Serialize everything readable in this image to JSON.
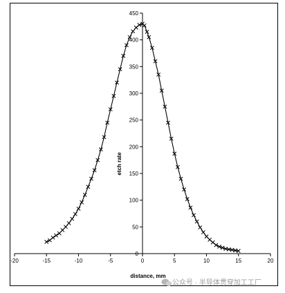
{
  "chart_data": {
    "type": "scatter",
    "xlabel": "distance, mm",
    "ylabel": "etch rate",
    "xlim": [
      -20,
      20
    ],
    "ylim": [
      0,
      450
    ],
    "x_ticks": [
      -20,
      -15,
      -10,
      -5,
      0,
      5,
      10,
      15,
      20
    ],
    "y_ticks": [
      0,
      50,
      100,
      150,
      200,
      250,
      300,
      350,
      400,
      450
    ],
    "grid": false,
    "legend": "none",
    "series": [
      {
        "marker": "x",
        "fit_line": true,
        "points": [
          [
            -15,
            22
          ],
          [
            -14.5,
            25
          ],
          [
            -14,
            30
          ],
          [
            -13.5,
            34
          ],
          [
            -13,
            38
          ],
          [
            -12.5,
            44
          ],
          [
            -12,
            50
          ],
          [
            -11.5,
            57
          ],
          [
            -11,
            65
          ],
          [
            -10.5,
            74
          ],
          [
            -10,
            84
          ],
          [
            -9.5,
            96
          ],
          [
            -9,
            110
          ],
          [
            -8.5,
            125
          ],
          [
            -8,
            140
          ],
          [
            -7.5,
            156
          ],
          [
            -7,
            175
          ],
          [
            -6.5,
            195
          ],
          [
            -6,
            218
          ],
          [
            -5.5,
            245
          ],
          [
            -5,
            270
          ],
          [
            -4.5,
            295
          ],
          [
            -4,
            320
          ],
          [
            -3.5,
            345
          ],
          [
            -3,
            370
          ],
          [
            -2.5,
            390
          ],
          [
            -2,
            405
          ],
          [
            -1.5,
            416
          ],
          [
            -1,
            423
          ],
          [
            -0.5,
            428
          ],
          [
            0,
            430
          ],
          [
            0.3,
            427
          ],
          [
            0.7,
            415
          ],
          [
            1,
            405
          ],
          [
            1.5,
            385
          ],
          [
            2,
            360
          ],
          [
            2.5,
            335
          ],
          [
            3,
            305
          ],
          [
            3.5,
            275
          ],
          [
            4,
            245
          ],
          [
            4.5,
            215
          ],
          [
            5,
            187
          ],
          [
            5.5,
            162
          ],
          [
            6,
            140
          ],
          [
            6.5,
            120
          ],
          [
            7,
            102
          ],
          [
            7.5,
            86
          ],
          [
            8,
            72
          ],
          [
            8.5,
            60
          ],
          [
            9,
            49
          ],
          [
            9.5,
            40
          ],
          [
            10,
            32
          ],
          [
            10.5,
            26
          ],
          [
            11,
            21
          ],
          [
            11.5,
            16
          ],
          [
            12,
            13
          ],
          [
            12.5,
            11
          ],
          [
            13,
            9
          ],
          [
            13.5,
            8
          ],
          [
            14,
            7
          ],
          [
            14.5,
            6
          ],
          [
            15,
            5
          ]
        ]
      }
    ]
  },
  "watermark": {
    "icon": "wechat-icon",
    "text": "公众号 · 半导体贯穿加工工厂"
  }
}
